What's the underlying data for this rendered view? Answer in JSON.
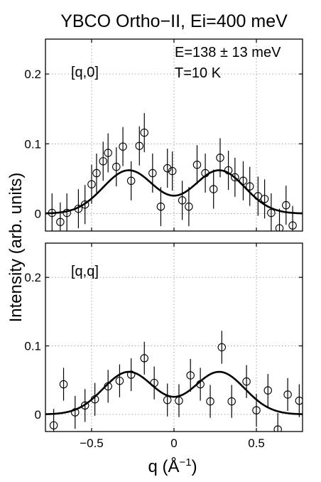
{
  "chart_data": [
    {
      "type": "scatter",
      "title": "YBCO Ortho−II, Ei=400 meV",
      "annotations": [
        "[q,0]",
        "E=138 ± 13 meV",
        "T=10 K"
      ],
      "ylim": [
        -0.025,
        0.25
      ],
      "xlim": [
        -0.78,
        0.78
      ],
      "yticks": [
        0,
        0.1,
        0.2
      ],
      "ytick_labels": [
        "0",
        "0.1",
        "0.2"
      ],
      "grid": true,
      "series": [
        {
          "x": [
            -0.74,
            -0.69,
            -0.65,
            -0.58,
            -0.54,
            -0.5,
            -0.47,
            -0.43,
            -0.4,
            -0.35,
            -0.31,
            -0.26,
            -0.21,
            -0.18,
            -0.13,
            -0.08,
            -0.04,
            -0.01,
            0.05,
            0.09,
            0.14,
            0.19,
            0.24,
            0.28,
            0.33,
            0.37,
            0.42,
            0.46,
            0.51,
            0.55,
            0.59,
            0.64,
            0.68,
            0.72,
            0.76
          ],
          "y": [
            0.001,
            -0.012,
            0.001,
            0.007,
            0.013,
            0.042,
            0.058,
            0.075,
            0.087,
            0.067,
            0.096,
            0.047,
            0.097,
            0.116,
            0.058,
            0.01,
            0.065,
            0.061,
            0.019,
            0.01,
            0.07,
            0.058,
            0.035,
            0.08,
            0.062,
            0.052,
            0.047,
            0.039,
            0.025,
            0.021,
            0.001,
            -0.021,
            0.012,
            -0.017,
            null
          ],
          "error": [
            0.028,
            0.028,
            0.028,
            0.028,
            0.028,
            0.028,
            0.028,
            0.028,
            0.028,
            0.028,
            0.028,
            0.028,
            0.028,
            0.028,
            0.028,
            0.028,
            0.028,
            0.028,
            0.028,
            0.028,
            0.028,
            0.028,
            0.028,
            0.028,
            0.028,
            0.028,
            0.028,
            0.028,
            0.028,
            0.028,
            0.028,
            0.028,
            0.028,
            0.028,
            null
          ]
        }
      ],
      "fit": {
        "A": 0.062,
        "x0": 0.275,
        "sigma": 0.155
      }
    },
    {
      "type": "scatter",
      "annotations": [
        "[q,q]"
      ],
      "ylim": [
        -0.025,
        0.25
      ],
      "xlim": [
        -0.78,
        0.78
      ],
      "yticks": [
        0,
        0.1,
        0.2
      ],
      "ytick_labels": [
        "0",
        "0.1",
        "0.2"
      ],
      "xticks": [
        -0.5,
        0,
        0.5
      ],
      "xtick_labels": [
        "−0.5",
        "0",
        "0.5"
      ],
      "xlabel": "q (Å",
      "xlabel_sup": "−1",
      "xlabel_end": ")",
      "grid": true,
      "series": [
        {
          "x": [
            -0.73,
            -0.67,
            -0.6,
            -0.54,
            -0.48,
            -0.4,
            -0.33,
            -0.26,
            -0.18,
            -0.12,
            -0.04,
            0.03,
            0.1,
            0.16,
            0.22,
            0.29,
            0.35,
            0.44,
            0.5,
            0.57,
            0.63,
            0.69,
            0.76
          ],
          "y": [
            -0.016,
            0.044,
            0.003,
            0.013,
            0.022,
            0.041,
            0.049,
            0.058,
            0.082,
            0.046,
            0.021,
            0.02,
            0.057,
            0.044,
            0.019,
            0.098,
            0.019,
            0.048,
            0.006,
            0.035,
            -0.022,
            0.029,
            0.02
          ],
          "error": [
            0.024,
            0.024,
            0.024,
            0.024,
            0.024,
            0.024,
            0.024,
            0.024,
            0.024,
            0.024,
            0.024,
            0.024,
            0.024,
            0.024,
            0.024,
            0.024,
            0.024,
            0.024,
            0.024,
            0.024,
            0.024,
            0.024,
            0.024
          ]
        }
      ],
      "fit": {
        "A": 0.062,
        "x0": 0.275,
        "sigma": 0.155
      }
    }
  ],
  "ylabel": "Intensity (arb. units)"
}
